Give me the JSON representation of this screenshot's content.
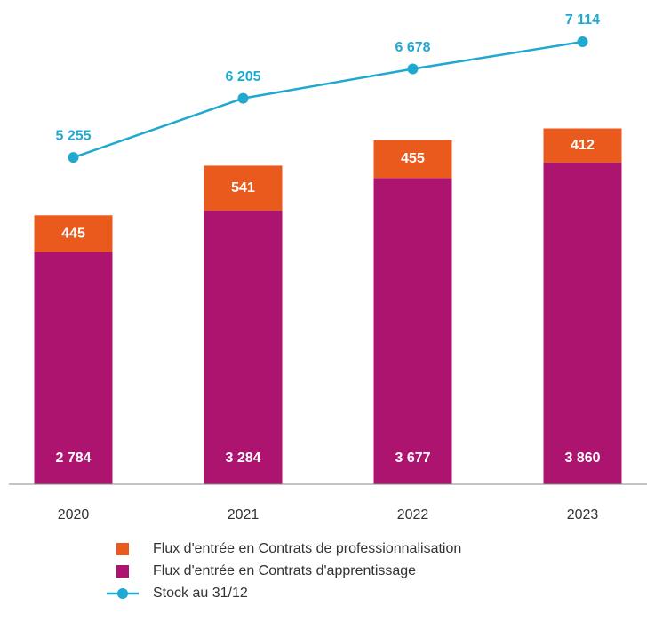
{
  "chart_data": {
    "type": "bar-line",
    "categories": [
      "2020",
      "2021",
      "2022",
      "2023"
    ],
    "series": [
      {
        "name": "Flux d'entrée en Contrats d'apprentissage",
        "color": "#ad1470",
        "values": [
          2784,
          3284,
          3677,
          3860
        ],
        "value_labels": [
          "2 784",
          "3 284",
          "3 677",
          "3 860"
        ]
      },
      {
        "name": "Flux d'entrée en Contrats de professionnalisation",
        "color": "#e95a1c",
        "values": [
          445,
          541,
          455,
          412
        ]
      },
      {
        "name": "Stock au 31/12",
        "color": "#1fa9d1",
        "axis": "y2",
        "type": "line",
        "values": [
          5255,
          6205,
          6678,
          7114
        ],
        "value_labels": [
          "5 255",
          "6 205",
          "6 678",
          "7 114"
        ]
      }
    ],
    "ylim": [
      0,
      5600
    ],
    "y2lim": [
      0,
      7500
    ],
    "stacked": true
  }
}
